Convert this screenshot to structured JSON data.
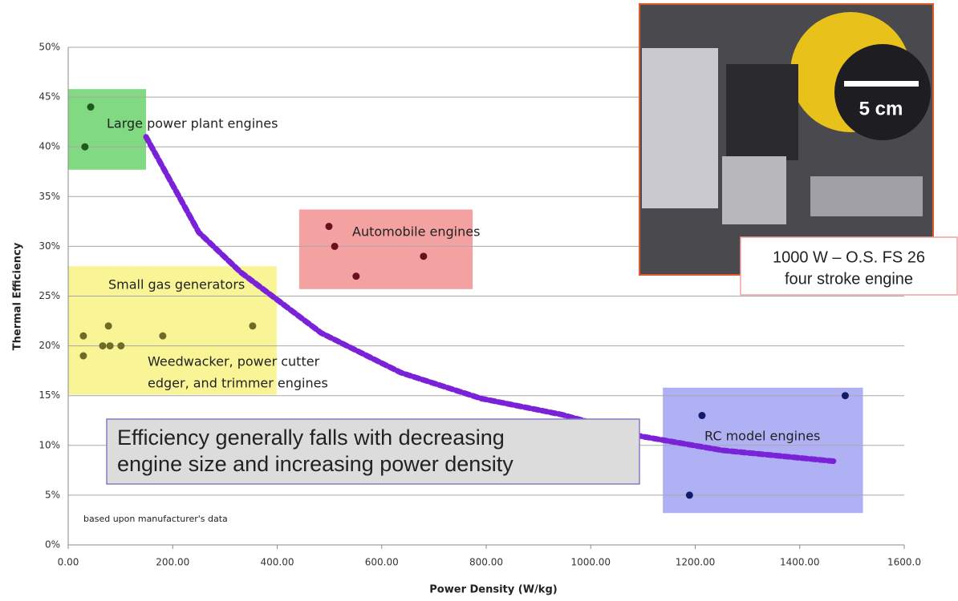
{
  "chart_data": {
    "type": "scatter",
    "xlabel": "Power Density (W/kg)",
    "ylabel": "Thermal Efficiency",
    "xlim": [
      0,
      1600
    ],
    "ylim": [
      0,
      50
    ],
    "xticks": [
      {
        "value": 0,
        "label": "0.00"
      },
      {
        "value": 200,
        "label": "200.00"
      },
      {
        "value": 400,
        "label": "400.00"
      },
      {
        "value": 600,
        "label": "600.00"
      },
      {
        "value": 800,
        "label": "800.00"
      },
      {
        "value": 1000,
        "label": "1000.00"
      },
      {
        "value": 1200,
        "label": "1200.00"
      },
      {
        "value": 1400,
        "label": "1400.00"
      },
      {
        "value": 1600,
        "label": "1600.0"
      }
    ],
    "yticks": [
      {
        "value": 0,
        "label": "0%"
      },
      {
        "value": 5,
        "label": "5%"
      },
      {
        "value": 10,
        "label": "10%"
      },
      {
        "value": 15,
        "label": "15%"
      },
      {
        "value": 20,
        "label": "20%"
      },
      {
        "value": 25,
        "label": "25%"
      },
      {
        "value": 30,
        "label": "30%"
      },
      {
        "value": 35,
        "label": "35%"
      },
      {
        "value": 40,
        "label": "40%"
      },
      {
        "value": 45,
        "label": "45%"
      },
      {
        "value": 50,
        "label": "50%"
      }
    ],
    "grid": true,
    "series": [
      {
        "name": "Large power plant engines",
        "color": "#1d5a1d",
        "region_color": "#62d062",
        "region": {
          "x": [
            0,
            149
          ],
          "y": [
            37.7,
            45.8
          ]
        },
        "x": [
          43,
          32
        ],
        "values": [
          44,
          40
        ]
      },
      {
        "name": "Automobile engines",
        "color": "#6b0f1f",
        "region_color": "#f08a8a",
        "region": {
          "x": [
            442,
            774
          ],
          "y": [
            25.7,
            33.7
          ]
        },
        "x": [
          499,
          510,
          551,
          680
        ],
        "values": [
          32,
          30,
          27,
          29
        ]
      },
      {
        "name": "Small gas generators",
        "color": "#6e6a28",
        "region_color": "#f7f27c",
        "region": {
          "x": [
            0,
            399
          ],
          "y": [
            15.1,
            28
          ]
        },
        "x": [
          29,
          29,
          77,
          66,
          80,
          101,
          181,
          353
        ],
        "values": [
          21,
          19,
          22,
          20,
          20,
          20,
          21,
          22
        ]
      },
      {
        "name": "RC model engines",
        "color": "#141a6a",
        "region_color": "#9c9cf2",
        "region": {
          "x": [
            1138,
            1521
          ],
          "y": [
            3.2,
            15.8
          ]
        },
        "x": [
          1189,
          1213,
          1487
        ],
        "values": [
          5,
          13,
          15
        ]
      }
    ],
    "trend": {
      "color": "#7a22d8",
      "x": [
        149,
        250,
        330,
        484,
        637,
        791,
        944,
        1098,
        1252,
        1467
      ],
      "values": [
        41,
        31.4,
        27.4,
        21.3,
        17.3,
        14.7,
        13.1,
        10.9,
        9.5,
        8.4
      ]
    },
    "annotations": {
      "weedwacker": [
        "Weedwacker, power cutter",
        "edger, and trimmer engines"
      ],
      "main": [
        "Efficiency generally falls with decreasing",
        "engine size and increasing power density"
      ],
      "source": "based upon manufacturer's data",
      "photo_caption": [
        "1000 W – O.S. FS 26",
        "four stroke engine"
      ],
      "scale_bar": "5 cm"
    }
  }
}
